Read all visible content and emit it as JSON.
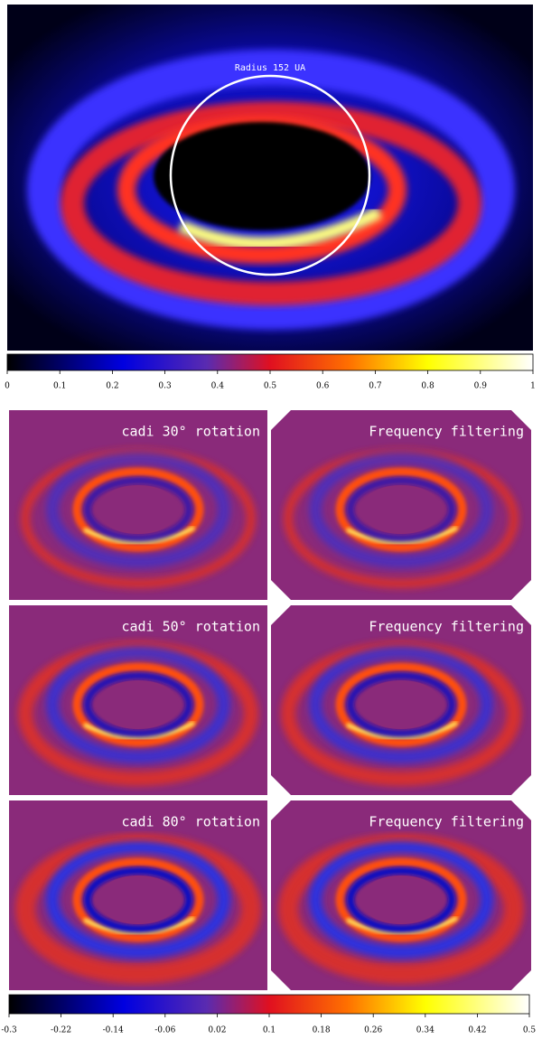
{
  "top_panel": {
    "annotation": "Radius 152 UA"
  },
  "top_colorbar": {
    "lim": [
      0,
      1
    ],
    "ticks": [
      0,
      0.1,
      0.2,
      0.3,
      0.4,
      0.5,
      0.6,
      0.7,
      0.8,
      0.9,
      1
    ]
  },
  "panels": [
    {
      "label": "cadi 30° rotation"
    },
    {
      "label": "Frequency filtering"
    },
    {
      "label": "cadi 50° rotation"
    },
    {
      "label": "Frequency filtering"
    },
    {
      "label": "cadi 80° rotation"
    },
    {
      "label": "Frequency filtering"
    }
  ],
  "bottom_colorbar": {
    "lim": [
      -0.3,
      0.5
    ],
    "ticks": [
      -0.3,
      -0.22,
      -0.14,
      -0.06,
      0.02,
      0.1,
      0.18,
      0.26,
      0.34,
      0.42,
      0.5
    ]
  }
}
